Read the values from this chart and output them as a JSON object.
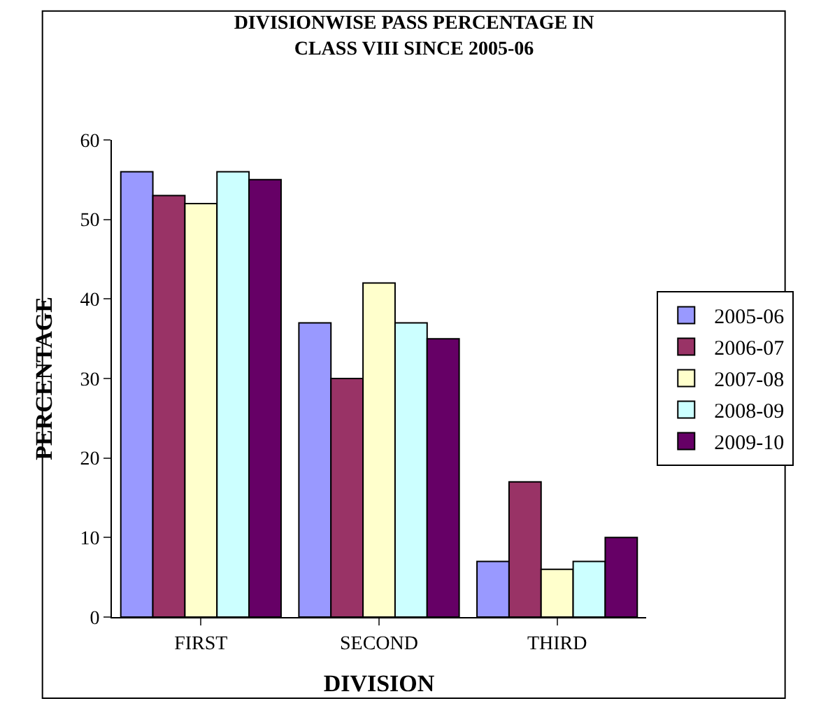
{
  "chart_data": {
    "type": "bar",
    "title": "DIVISIONWISE PASS PERCENTAGE IN\nCLASS VIII SINCE 2005-06",
    "xlabel": "DIVISION",
    "ylabel": "PERCENTAGE",
    "categories": [
      "FIRST",
      "SECOND",
      "THIRD"
    ],
    "series": [
      {
        "name": "2005-06",
        "color": "#9999ff",
        "values": [
          56,
          37,
          7
        ]
      },
      {
        "name": "2006-07",
        "color": "#993366",
        "values": [
          53,
          30,
          17
        ]
      },
      {
        "name": "2007-08",
        "color": "#ffffcc",
        "values": [
          52,
          42,
          6
        ]
      },
      {
        "name": "2008-09",
        "color": "#ccffff",
        "values": [
          56,
          37,
          7
        ]
      },
      {
        "name": "2009-10",
        "color": "#660066",
        "values": [
          55,
          35,
          10
        ]
      }
    ],
    "ylim": [
      0,
      60
    ],
    "yticks": [
      0,
      10,
      20,
      30,
      40,
      50,
      60
    ],
    "grid": false,
    "legend": "right"
  }
}
